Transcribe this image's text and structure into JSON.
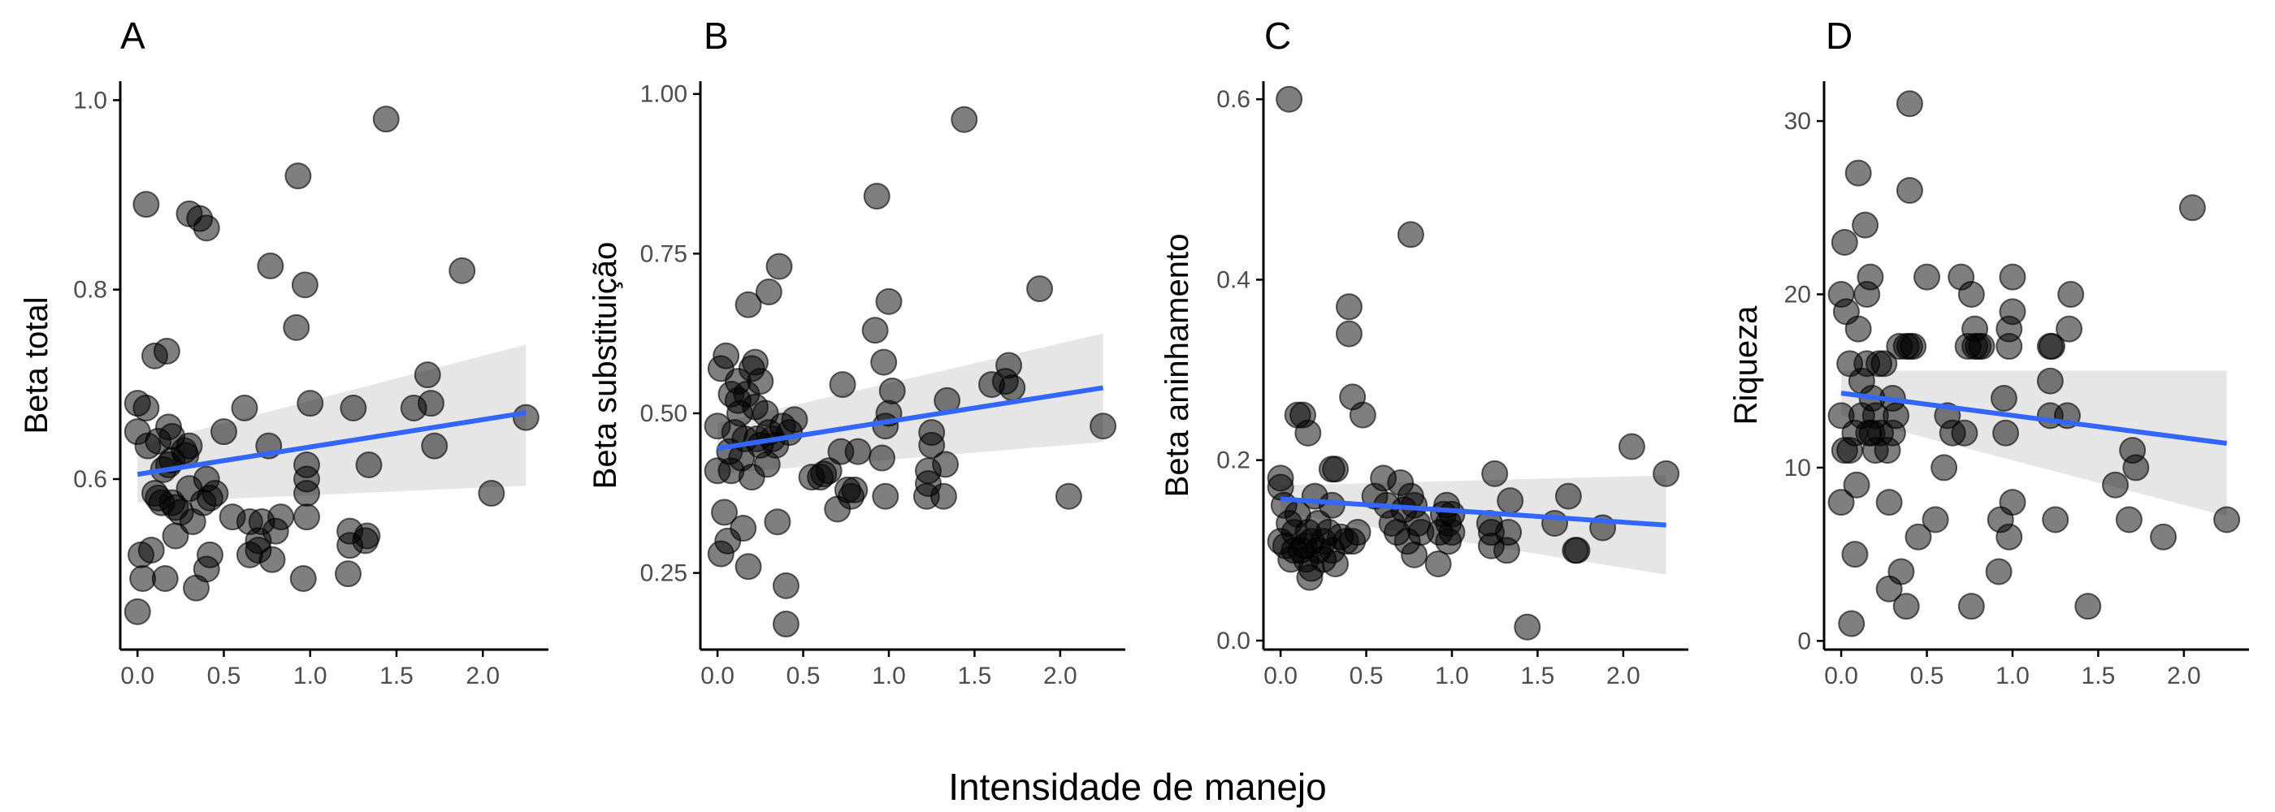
{
  "figure": {
    "xlabel": "Intensidade de manejo"
  },
  "style": {
    "point_color": "#000000",
    "point_opacity": 0.5,
    "fit_line_color": "#3366FF",
    "ribbon_color": "#D9D9D9",
    "axis_color": "#000000",
    "tick_label_color": "#4d4d4d"
  },
  "chart_data": [
    {
      "type": "scatter",
      "panel": "A",
      "title": "A",
      "xlabel": "",
      "ylabel": "Beta total",
      "xlim": [
        -0.1,
        2.38
      ],
      "ylim": [
        0.42,
        1.02
      ],
      "xticks": [
        0.0,
        0.5,
        1.0,
        1.5,
        2.0
      ],
      "xtick_labels": [
        "0.0",
        "0.5",
        "1.0",
        "1.5",
        "2.0"
      ],
      "yticks": [
        0.6,
        0.8,
        1.0
      ],
      "ytick_labels": [
        "0.6",
        "0.8",
        "1.0"
      ],
      "grid": false,
      "fit": {
        "x": [
          0.0,
          2.25
        ],
        "y": [
          0.605,
          0.67
        ],
        "ci_lower": [
          0.575,
          0.593
        ],
        "ci_upper": [
          0.635,
          0.742
        ]
      },
      "points": [
        [
          0.0,
          0.68
        ],
        [
          0.0,
          0.65
        ],
        [
          0.02,
          0.52
        ],
        [
          0.0,
          0.46
        ],
        [
          0.03,
          0.495
        ],
        [
          0.05,
          0.675
        ],
        [
          0.06,
          0.635
        ],
        [
          0.05,
          0.89
        ],
        [
          0.08,
          0.525
        ],
        [
          0.1,
          0.73
        ],
        [
          0.1,
          0.585
        ],
        [
          0.12,
          0.64
        ],
        [
          0.12,
          0.58
        ],
        [
          0.14,
          0.575
        ],
        [
          0.15,
          0.61
        ],
        [
          0.16,
          0.495
        ],
        [
          0.17,
          0.735
        ],
        [
          0.18,
          0.655
        ],
        [
          0.18,
          0.615
        ],
        [
          0.2,
          0.62
        ],
        [
          0.2,
          0.645
        ],
        [
          0.2,
          0.575
        ],
        [
          0.22,
          0.57
        ],
        [
          0.22,
          0.54
        ],
        [
          0.25,
          0.565
        ],
        [
          0.27,
          0.63
        ],
        [
          0.28,
          0.625
        ],
        [
          0.3,
          0.635
        ],
        [
          0.3,
          0.88
        ],
        [
          0.3,
          0.59
        ],
        [
          0.32,
          0.555
        ],
        [
          0.34,
          0.485
        ],
        [
          0.36,
          0.875
        ],
        [
          0.38,
          0.575
        ],
        [
          0.4,
          0.865
        ],
        [
          0.4,
          0.6
        ],
        [
          0.42,
          0.52
        ],
        [
          0.42,
          0.58
        ],
        [
          0.45,
          0.585
        ],
        [
          0.4,
          0.505
        ],
        [
          0.5,
          0.65
        ],
        [
          0.55,
          0.56
        ],
        [
          0.62,
          0.675
        ],
        [
          0.65,
          0.555
        ],
        [
          0.65,
          0.52
        ],
        [
          0.7,
          0.525
        ],
        [
          0.7,
          0.535
        ],
        [
          0.72,
          0.555
        ],
        [
          0.76,
          0.635
        ],
        [
          0.77,
          0.825
        ],
        [
          0.78,
          0.515
        ],
        [
          0.8,
          0.545
        ],
        [
          0.83,
          0.56
        ],
        [
          0.92,
          0.76
        ],
        [
          0.93,
          0.92
        ],
        [
          0.96,
          0.495
        ],
        [
          0.97,
          0.805
        ],
        [
          0.98,
          0.615
        ],
        [
          0.98,
          0.6
        ],
        [
          0.98,
          0.585
        ],
        [
          0.98,
          0.56
        ],
        [
          1.0,
          0.68
        ],
        [
          1.22,
          0.5
        ],
        [
          1.23,
          0.53
        ],
        [
          1.23,
          0.545
        ],
        [
          1.25,
          0.675
        ],
        [
          1.32,
          0.535
        ],
        [
          1.33,
          0.54
        ],
        [
          1.34,
          0.615
        ],
        [
          1.44,
          0.98
        ],
        [
          1.6,
          0.675
        ],
        [
          1.68,
          0.71
        ],
        [
          1.7,
          0.68
        ],
        [
          1.72,
          0.635
        ],
        [
          1.88,
          0.82
        ],
        [
          2.05,
          0.585
        ],
        [
          2.25,
          0.665
        ]
      ]
    },
    {
      "type": "scatter",
      "panel": "B",
      "title": "B",
      "xlabel": "",
      "ylabel": "Beta substituição",
      "xlim": [
        -0.1,
        2.38
      ],
      "ylim": [
        0.13,
        1.02
      ],
      "xticks": [
        0.0,
        0.5,
        1.0,
        1.5,
        2.0
      ],
      "xtick_labels": [
        "0.0",
        "0.5",
        "1.0",
        "1.5",
        "2.0"
      ],
      "yticks": [
        0.25,
        0.5,
        0.75,
        1.0
      ],
      "ytick_labels": [
        "0.25",
        "0.50",
        "0.75",
        "1.00"
      ],
      "grid": false,
      "fit": {
        "x": [
          0.0,
          2.25
        ],
        "y": [
          0.445,
          0.54
        ],
        "ci_lower": [
          0.405,
          0.455
        ],
        "ci_upper": [
          0.485,
          0.625
        ]
      },
      "points": [
        [
          0.0,
          0.48
        ],
        [
          0.0,
          0.41
        ],
        [
          0.02,
          0.57
        ],
        [
          0.02,
          0.28
        ],
        [
          0.04,
          0.345
        ],
        [
          0.05,
          0.59
        ],
        [
          0.06,
          0.3
        ],
        [
          0.07,
          0.44
        ],
        [
          0.08,
          0.53
        ],
        [
          0.08,
          0.41
        ],
        [
          0.1,
          0.47
        ],
        [
          0.12,
          0.55
        ],
        [
          0.12,
          0.52
        ],
        [
          0.13,
          0.5
        ],
        [
          0.14,
          0.43
        ],
        [
          0.15,
          0.32
        ],
        [
          0.16,
          0.46
        ],
        [
          0.17,
          0.53
        ],
        [
          0.18,
          0.26
        ],
        [
          0.18,
          0.67
        ],
        [
          0.2,
          0.57
        ],
        [
          0.2,
          0.4
        ],
        [
          0.22,
          0.58
        ],
        [
          0.22,
          0.51
        ],
        [
          0.23,
          0.46
        ],
        [
          0.25,
          0.55
        ],
        [
          0.25,
          0.45
        ],
        [
          0.28,
          0.5
        ],
        [
          0.29,
          0.42
        ],
        [
          0.3,
          0.69
        ],
        [
          0.3,
          0.47
        ],
        [
          0.32,
          0.46
        ],
        [
          0.34,
          0.45
        ],
        [
          0.35,
          0.33
        ],
        [
          0.36,
          0.73
        ],
        [
          0.38,
          0.48
        ],
        [
          0.4,
          0.23
        ],
        [
          0.4,
          0.17
        ],
        [
          0.42,
          0.47
        ],
        [
          0.45,
          0.49
        ],
        [
          0.55,
          0.4
        ],
        [
          0.6,
          0.4
        ],
        [
          0.62,
          0.405
        ],
        [
          0.65,
          0.41
        ],
        [
          0.7,
          0.35
        ],
        [
          0.72,
          0.44
        ],
        [
          0.73,
          0.545
        ],
        [
          0.76,
          0.38
        ],
        [
          0.78,
          0.37
        ],
        [
          0.8,
          0.38
        ],
        [
          0.82,
          0.44
        ],
        [
          0.92,
          0.63
        ],
        [
          0.93,
          0.84
        ],
        [
          0.96,
          0.43
        ],
        [
          0.97,
          0.58
        ],
        [
          0.98,
          0.48
        ],
        [
          0.98,
          0.37
        ],
        [
          1.0,
          0.5
        ],
        [
          1.0,
          0.675
        ],
        [
          1.02,
          0.535
        ],
        [
          1.22,
          0.37
        ],
        [
          1.23,
          0.41
        ],
        [
          1.23,
          0.39
        ],
        [
          1.25,
          0.45
        ],
        [
          1.25,
          0.47
        ],
        [
          1.32,
          0.37
        ],
        [
          1.33,
          0.42
        ],
        [
          1.34,
          0.52
        ],
        [
          1.44,
          0.96
        ],
        [
          1.6,
          0.545
        ],
        [
          1.68,
          0.55
        ],
        [
          1.7,
          0.575
        ],
        [
          1.72,
          0.54
        ],
        [
          1.88,
          0.695
        ],
        [
          2.05,
          0.37
        ],
        [
          2.25,
          0.48
        ]
      ]
    },
    {
      "type": "scatter",
      "panel": "C",
      "title": "C",
      "xlabel": "",
      "ylabel": "Beta aninhamento",
      "xlim": [
        -0.1,
        2.38
      ],
      "ylim": [
        -0.01,
        0.62
      ],
      "xticks": [
        0.0,
        0.5,
        1.0,
        1.5,
        2.0
      ],
      "xtick_labels": [
        "0.0",
        "0.5",
        "1.0",
        "1.5",
        "2.0"
      ],
      "yticks": [
        0.0,
        0.2,
        0.4,
        0.6
      ],
      "ytick_labels": [
        "0.0",
        "0.2",
        "0.4",
        "0.6"
      ],
      "grid": false,
      "fit": {
        "x": [
          0.0,
          2.25
        ],
        "y": [
          0.157,
          0.128
        ],
        "ci_lower": [
          0.142,
          0.073
        ],
        "ci_upper": [
          0.172,
          0.183
        ]
      },
      "points": [
        [
          0.0,
          0.18
        ],
        [
          0.0,
          0.17
        ],
        [
          0.0,
          0.11
        ],
        [
          0.02,
          0.15
        ],
        [
          0.03,
          0.105
        ],
        [
          0.05,
          0.6
        ],
        [
          0.05,
          0.13
        ],
        [
          0.06,
          0.09
        ],
        [
          0.08,
          0.12
        ],
        [
          0.08,
          0.1
        ],
        [
          0.1,
          0.25
        ],
        [
          0.1,
          0.14
        ],
        [
          0.12,
          0.1
        ],
        [
          0.13,
          0.25
        ],
        [
          0.14,
          0.105
        ],
        [
          0.15,
          0.09
        ],
        [
          0.16,
          0.23
        ],
        [
          0.16,
          0.12
        ],
        [
          0.17,
          0.07
        ],
        [
          0.18,
          0.08
        ],
        [
          0.18,
          0.11
        ],
        [
          0.2,
          0.16
        ],
        [
          0.22,
          0.13
        ],
        [
          0.22,
          0.1
        ],
        [
          0.25,
          0.09
        ],
        [
          0.25,
          0.11
        ],
        [
          0.28,
          0.12
        ],
        [
          0.3,
          0.19
        ],
        [
          0.3,
          0.15
        ],
        [
          0.3,
          0.1
        ],
        [
          0.32,
          0.19
        ],
        [
          0.32,
          0.085
        ],
        [
          0.35,
          0.115
        ],
        [
          0.38,
          0.11
        ],
        [
          0.4,
          0.37
        ],
        [
          0.4,
          0.34
        ],
        [
          0.42,
          0.27
        ],
        [
          0.42,
          0.11
        ],
        [
          0.45,
          0.12
        ],
        [
          0.48,
          0.25
        ],
        [
          0.55,
          0.16
        ],
        [
          0.6,
          0.18
        ],
        [
          0.62,
          0.15
        ],
        [
          0.65,
          0.13
        ],
        [
          0.68,
          0.12
        ],
        [
          0.7,
          0.175
        ],
        [
          0.72,
          0.145
        ],
        [
          0.74,
          0.11
        ],
        [
          0.76,
          0.45
        ],
        [
          0.76,
          0.16
        ],
        [
          0.78,
          0.15
        ],
        [
          0.78,
          0.095
        ],
        [
          0.8,
          0.13
        ],
        [
          0.82,
          0.12
        ],
        [
          0.92,
          0.085
        ],
        [
          0.93,
          0.12
        ],
        [
          0.95,
          0.14
        ],
        [
          0.97,
          0.15
        ],
        [
          0.98,
          0.13
        ],
        [
          0.98,
          0.11
        ],
        [
          1.0,
          0.12
        ],
        [
          1.0,
          0.14
        ],
        [
          1.22,
          0.13
        ],
        [
          1.23,
          0.12
        ],
        [
          1.23,
          0.105
        ],
        [
          1.25,
          0.185
        ],
        [
          1.32,
          0.1
        ],
        [
          1.33,
          0.12
        ],
        [
          1.34,
          0.155
        ],
        [
          1.44,
          0.015
        ],
        [
          1.6,
          0.13
        ],
        [
          1.68,
          0.16
        ],
        [
          1.72,
          0.1
        ],
        [
          1.73,
          0.1
        ],
        [
          1.88,
          0.125
        ],
        [
          2.05,
          0.215
        ],
        [
          2.25,
          0.185
        ]
      ]
    },
    {
      "type": "scatter",
      "panel": "D",
      "title": "D",
      "xlabel": "",
      "ylabel": "Riqueza",
      "xlim": [
        -0.1,
        2.38
      ],
      "ylim": [
        -0.5,
        32.3
      ],
      "xticks": [
        0.0,
        0.5,
        1.0,
        1.5,
        2.0
      ],
      "xtick_labels": [
        "0.0",
        "0.5",
        "1.0",
        "1.5",
        "2.0"
      ],
      "yticks": [
        0,
        10,
        20,
        30
      ],
      "ytick_labels": [
        "0",
        "10",
        "20",
        "30"
      ],
      "grid": false,
      "fit": {
        "x": [
          0.0,
          2.25
        ],
        "y": [
          14.3,
          11.4
        ],
        "ci_lower": [
          13.0,
          7.2
        ],
        "ci_upper": [
          15.6,
          15.6
        ]
      },
      "points": [
        [
          0.0,
          13
        ],
        [
          0.0,
          8
        ],
        [
          0.0,
          20
        ],
        [
          0.02,
          11
        ],
        [
          0.02,
          23
        ],
        [
          0.03,
          19
        ],
        [
          0.05,
          16
        ],
        [
          0.05,
          11
        ],
        [
          0.06,
          1
        ],
        [
          0.08,
          12
        ],
        [
          0.08,
          5
        ],
        [
          0.09,
          9
        ],
        [
          0.1,
          18
        ],
        [
          0.1,
          27
        ],
        [
          0.12,
          13
        ],
        [
          0.12,
          15
        ],
        [
          0.14,
          24
        ],
        [
          0.15,
          20
        ],
        [
          0.15,
          16
        ],
        [
          0.16,
          12
        ],
        [
          0.17,
          21
        ],
        [
          0.18,
          14
        ],
        [
          0.18,
          12
        ],
        [
          0.2,
          11
        ],
        [
          0.2,
          13
        ],
        [
          0.22,
          16
        ],
        [
          0.23,
          12
        ],
        [
          0.25,
          16
        ],
        [
          0.27,
          11
        ],
        [
          0.28,
          8
        ],
        [
          0.28,
          3
        ],
        [
          0.3,
          14
        ],
        [
          0.3,
          12
        ],
        [
          0.32,
          13
        ],
        [
          0.34,
          17
        ],
        [
          0.35,
          4
        ],
        [
          0.38,
          17
        ],
        [
          0.38,
          2
        ],
        [
          0.4,
          17
        ],
        [
          0.4,
          31
        ],
        [
          0.4,
          26
        ],
        [
          0.42,
          17
        ],
        [
          0.45,
          6
        ],
        [
          0.5,
          21
        ],
        [
          0.55,
          7
        ],
        [
          0.6,
          10
        ],
        [
          0.62,
          13
        ],
        [
          0.65,
          12
        ],
        [
          0.7,
          21
        ],
        [
          0.72,
          12
        ],
        [
          0.74,
          17
        ],
        [
          0.76,
          2
        ],
        [
          0.76,
          20
        ],
        [
          0.78,
          17
        ],
        [
          0.78,
          18
        ],
        [
          0.8,
          17
        ],
        [
          0.82,
          17
        ],
        [
          0.92,
          4
        ],
        [
          0.93,
          7
        ],
        [
          0.95,
          14
        ],
        [
          0.96,
          12
        ],
        [
          0.98,
          6
        ],
        [
          0.98,
          17
        ],
        [
          0.98,
          18
        ],
        [
          1.0,
          19
        ],
        [
          1.0,
          21
        ],
        [
          1.0,
          8
        ],
        [
          1.22,
          13
        ],
        [
          1.22,
          15
        ],
        [
          1.22,
          17
        ],
        [
          1.23,
          17
        ],
        [
          1.25,
          7
        ],
        [
          1.32,
          13
        ],
        [
          1.33,
          18
        ],
        [
          1.34,
          20
        ],
        [
          1.44,
          2
        ],
        [
          1.6,
          9
        ],
        [
          1.68,
          7
        ],
        [
          1.7,
          11
        ],
        [
          1.72,
          10
        ],
        [
          1.88,
          6
        ],
        [
          2.05,
          25
        ],
        [
          2.25,
          7
        ]
      ]
    }
  ]
}
